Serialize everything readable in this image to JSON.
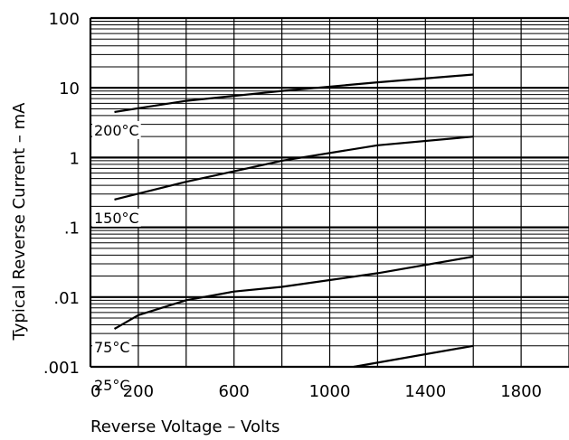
{
  "chart_data": {
    "type": "line",
    "xlabel": "Reverse Voltage – Volts",
    "ylabel": "Typical Reverse Current – mA",
    "xlim": [
      0,
      2000
    ],
    "ylim": [
      0.001,
      100
    ],
    "y_scale": "log",
    "grid": true,
    "x_ticks": [
      0,
      200,
      600,
      1000,
      1400,
      1800
    ],
    "x_tick_labels": [
      "0",
      "200",
      "600",
      "1000",
      "1400",
      "1800"
    ],
    "y_ticks": [
      0.001,
      0.01,
      0.1,
      1,
      10,
      100
    ],
    "y_tick_labels": [
      ".001",
      ".01",
      ".1",
      "1",
      "10",
      "100"
    ],
    "series": [
      {
        "name": "200°C",
        "x": [
          100,
          400,
          800,
          1200,
          1600
        ],
        "y": [
          4.5,
          6.5,
          9.0,
          12.0,
          15.5
        ]
      },
      {
        "name": "150°C",
        "x": [
          100,
          400,
          800,
          1200,
          1600
        ],
        "y": [
          0.25,
          0.45,
          0.9,
          1.5,
          2.0
        ]
      },
      {
        "name": "75°C",
        "x": [
          100,
          200,
          400,
          600,
          800,
          1200,
          1600
        ],
        "y": [
          0.0035,
          0.0055,
          0.009,
          0.012,
          0.014,
          0.022,
          0.038
        ]
      },
      {
        "name": "25°C",
        "x": [
          1100,
          1600
        ],
        "y": [
          0.001,
          0.002
        ]
      }
    ]
  }
}
